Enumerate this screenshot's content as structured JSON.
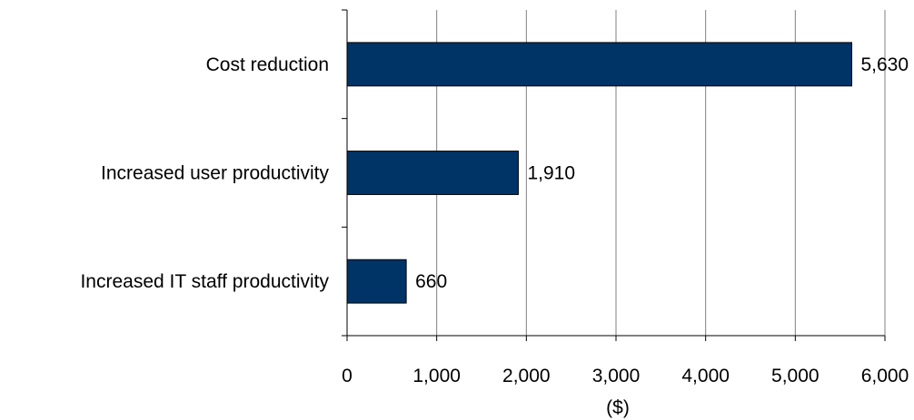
{
  "chart_data": {
    "type": "bar",
    "orientation": "horizontal",
    "categories": [
      "Cost reduction",
      "Increased user productivity",
      "Increased IT staff productivity"
    ],
    "values": [
      5630,
      1910,
      660
    ],
    "data_labels": [
      "5,630",
      "1,910",
      "660"
    ],
    "xlabel": "($)",
    "xlim": [
      0,
      6000
    ],
    "xticks": [
      0,
      1000,
      2000,
      3000,
      4000,
      5000,
      6000
    ],
    "xtick_labels": [
      "0",
      "1,000",
      "2,000",
      "3,000",
      "4,000",
      "5,000",
      "6,000"
    ],
    "grid": "vertical",
    "legend": "none",
    "bar_color": "#003366"
  }
}
